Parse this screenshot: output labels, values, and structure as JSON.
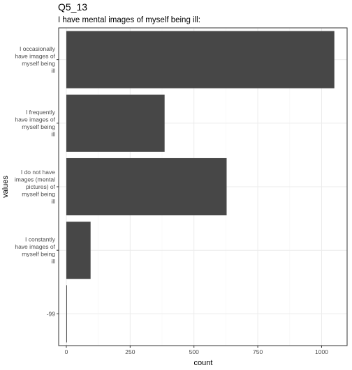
{
  "chart_data": {
    "type": "bar",
    "orientation": "horizontal",
    "title": "Q5_13",
    "subtitle": "I have mental images of myself being ill:",
    "xlabel": "count",
    "ylabel": "values",
    "categories": [
      "I occasionally have images of myself being ill",
      "I frequently have images of myself being ill",
      "I do not have images (mental pictures) of myself being ill",
      "I constantly have images of myself being ill",
      "-99"
    ],
    "category_lines": [
      [
        "I occasionally",
        "have images of",
        "myself being",
        "ill"
      ],
      [
        "I frequently",
        "have images of",
        "myself being",
        "ill"
      ],
      [
        "I do not have",
        "images (mental",
        "pictures) of",
        "myself being",
        "ill"
      ],
      [
        "I constantly",
        "have images of",
        "myself being",
        "ill"
      ],
      [
        "-99"
      ]
    ],
    "values": [
      1050,
      385,
      628,
      95,
      2
    ],
    "xlim": [
      -30,
      1100
    ],
    "xticks": [
      0,
      250,
      500,
      750,
      1000
    ],
    "xtick_labels": [
      "0",
      "250",
      "500",
      "750",
      "1000"
    ],
    "grid": true,
    "colors": {
      "bar": "#474747",
      "panel_border": "#333333",
      "grid_major": "#ebebeb",
      "grid_minor": "#f5f5f5"
    }
  }
}
